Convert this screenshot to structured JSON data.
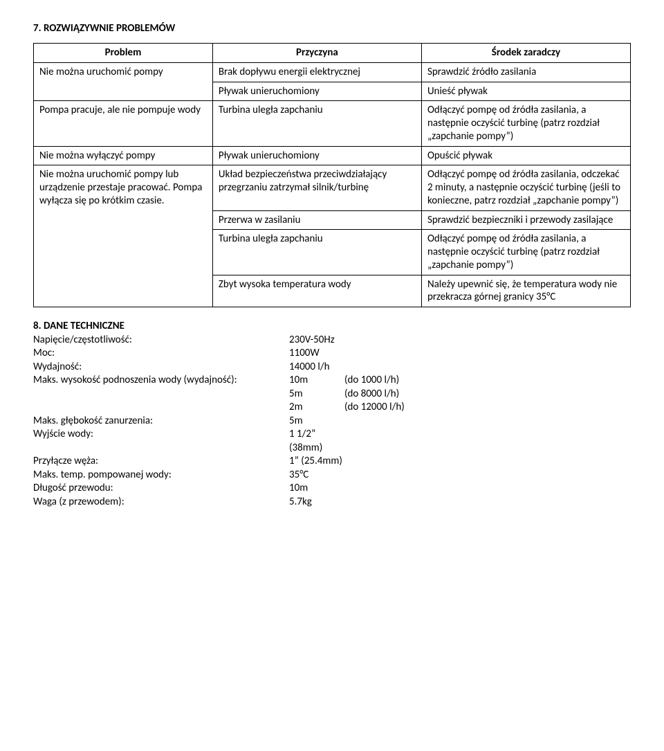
{
  "section7": {
    "heading": "7. ROZWIĄZYWNIE PROBLEMÓW",
    "headers": {
      "problem": "Problem",
      "cause": "Przyczyna",
      "fix": "Środek zaradczy"
    },
    "rows": {
      "r1_problem": "Nie można uruchomić pompy",
      "r1a_cause": "Brak dopływu energii elektrycznej",
      "r1a_fix": "Sprawdzić źródło zasilania",
      "r1b_cause": "Pływak unieruchomiony",
      "r1b_fix": "Unieść pływak",
      "r2_problem": "Pompa pracuje, ale nie pompuje wody",
      "r2_cause": "Turbina uległa zapchaniu",
      "r2_fix": "Odłączyć pompę od źródła zasilania, a następnie oczyścić turbinę (patrz rozdział „zapchanie pompy”)",
      "r3_problem": "Nie można wyłączyć pompy",
      "r3_cause": "Pływak unieruchomiony",
      "r3_fix": "Opuścić pływak",
      "r4_problem": "Nie można uruchomić pompy lub urządzenie przestaje pracować. Pompa wyłącza się po krótkim czasie.",
      "r4a_cause": "Układ bezpieczeństwa przeciwdziałający przegrzaniu zatrzymał silnik/turbinę",
      "r4a_fix": "Odłączyć pompę od źródła zasilania, odczekać 2 minuty, a następnie oczyścić turbinę (jeśli to konieczne, patrz rozdział „zapchanie pompy”)",
      "r4b_cause": "Przerwa w zasilaniu",
      "r4b_fix": "Sprawdzić bezpieczniki i przewody zasilające",
      "r4c_cause": "Turbina uległa zapchaniu",
      "r4c_fix": "Odłączyć pompę od źródła zasilania, a następnie oczyścić turbinę (patrz rozdział „zapchanie pompy”)",
      "r4d_cause": "Zbyt wysoka temperatura wody",
      "r4d_fix": "Należy upewnić się, że temperatura wody nie przekracza górnej granicy 35°C"
    }
  },
  "section8": {
    "heading": "8. DANE TECHNICZNE",
    "rows": [
      {
        "label": "Napięcie/częstotliwość:",
        "val": "230V-50Hz",
        "note": ""
      },
      {
        "label": "Moc:",
        "val": "1100W",
        "note": ""
      },
      {
        "label": "Wydajność:",
        "val": "14000 l/h",
        "note": ""
      },
      {
        "label": "Maks. wysokość podnoszenia wody (wydajność):",
        "val": "10m",
        "note": "(do 1000 l/h)"
      },
      {
        "label": "",
        "val": "5m",
        "note": "(do 8000 l/h)"
      },
      {
        "label": "",
        "val": "2m",
        "note": "(do 12000 l/h)"
      },
      {
        "label": "Maks. głębokość zanurzenia:",
        "val": "5m",
        "note": ""
      },
      {
        "label": "Wyjście wody:",
        "val": "1 1/2” (38mm)",
        "note": ""
      },
      {
        "label": "Przyłącze węża:",
        "val": "1” (25.4mm)",
        "note": ""
      },
      {
        "label": "Maks. temp. pompowanej wody:",
        "val": "35°C",
        "note": ""
      },
      {
        "label": "Długość przewodu:",
        "val": "10m",
        "note": ""
      },
      {
        "label": "Waga (z przewodem):",
        "val": "5.7kg",
        "note": ""
      }
    ]
  }
}
